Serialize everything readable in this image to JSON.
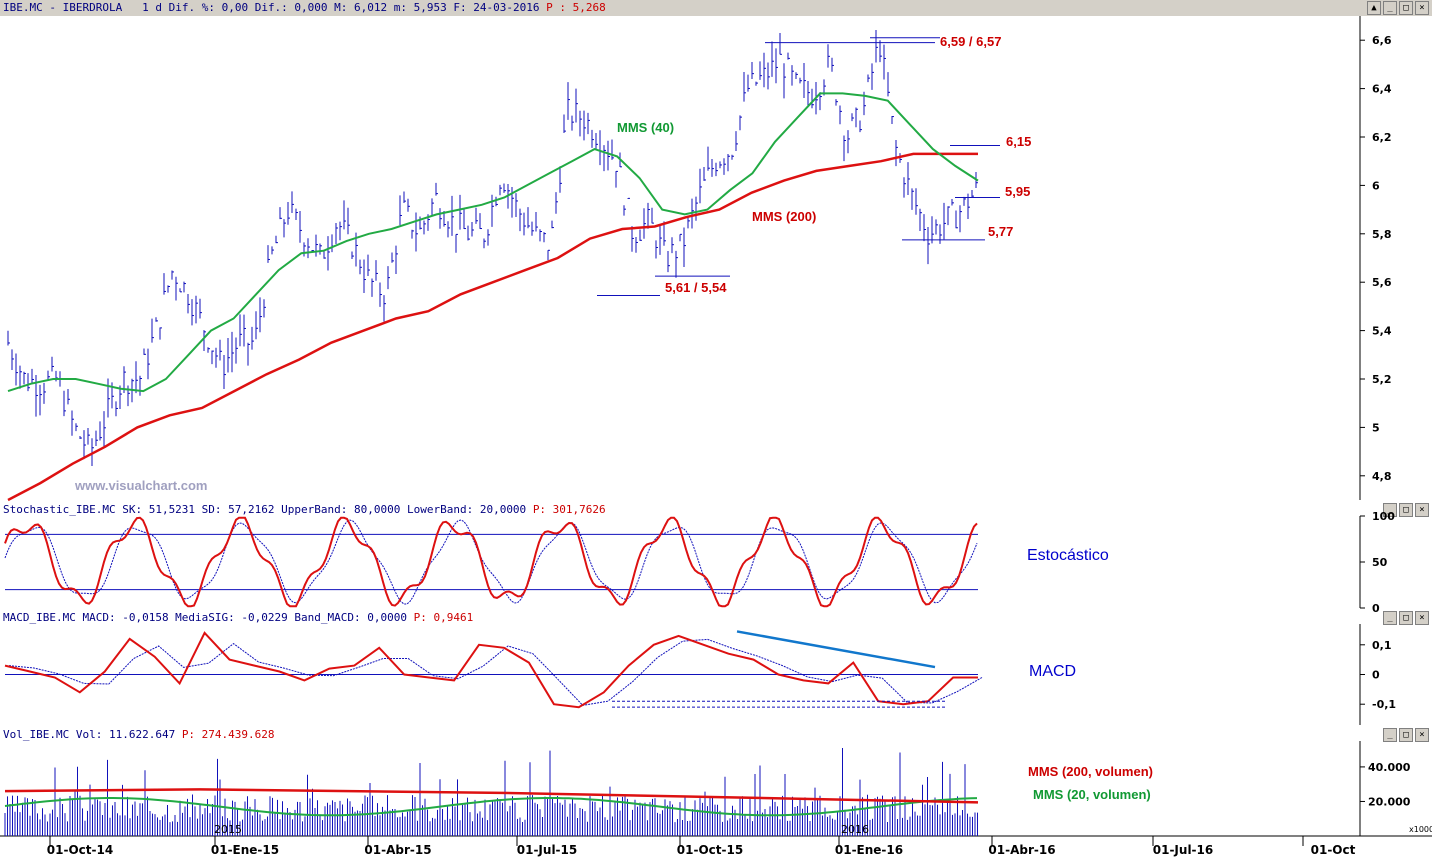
{
  "panels": {
    "price": {
      "title_symbol": "IBE.MC",
      "title_name": "IBERDROLA",
      "title_info": "1 d Dif. %: 0,00 Dif.: 0,000 M: 6,012 m: 5,953 F: 24-03-2016",
      "title_p": "P : 5,268"
    },
    "stoch": {
      "title": "Stochastic_IBE.MC SK: 51,5231 SD: 57,2162 UpperBand: 80,0000 LowerBand: 20,0000",
      "title_p": "P: 301,7626",
      "label": "Estocástico"
    },
    "macd": {
      "title": "MACD_IBE.MC MACD: -0,0158 MediaSIG: -0,0229 Band_MACD: 0,0000",
      "title_p": "P: 0,9461",
      "label": "MACD"
    },
    "vol": {
      "title": "Vol_IBE.MC Vol: 11.622.647",
      "title_p": "P: 274.439.628",
      "mms200": "MMS (200, volumen)",
      "mms20": "MMS (20, volumen)",
      "unit": "x1000"
    }
  },
  "watermark": "www.visualchart.com",
  "annotations": {
    "mms40": "MMS (40)",
    "mms200": "MMS (200)",
    "a659": "6,59 / 6,57",
    "a615": "6,15",
    "a595": "5,95",
    "a577": "5,77",
    "a561": "5,61 / 5,54"
  },
  "window_buttons": [
    "▲",
    "_",
    "□",
    "×"
  ],
  "chart_data": {
    "type": "line",
    "title": "IBE.MC - IBERDROLA",
    "x_ticks": [
      "01-Oct-14",
      "01-Ene-15",
      "01-Abr-15",
      "01-Jul-15",
      "01-Oct-15",
      "01-Ene-16",
      "01-Abr-16",
      "01-Jul-16",
      "01-Oct"
    ],
    "year_marks": [
      "2015",
      "2016"
    ],
    "price_y_ticks": [
      "6,6",
      "6,4",
      "6,2",
      "6",
      "5,8",
      "5,6",
      "5,4",
      "5,2",
      "5",
      "4,8"
    ],
    "stoch_y_ticks": [
      "100",
      "50",
      "0"
    ],
    "macd_y_ticks": [
      "0,1",
      "0",
      "-0,1"
    ],
    "vol_y_ticks": [
      "40.000",
      "20.000"
    ],
    "price_ylim": [
      4.7,
      6.7
    ],
    "price_close": [
      5.35,
      5.2,
      5.18,
      5.2,
      5.0,
      4.9,
      5.05,
      5.2,
      5.2,
      5.4,
      5.65,
      5.55,
      5.4,
      5.25,
      5.35,
      5.35,
      5.7,
      5.9,
      5.8,
      5.7,
      5.85,
      5.75,
      5.6,
      5.55,
      5.9,
      5.8,
      5.95,
      5.85,
      5.8,
      5.8,
      6.05,
      5.9,
      5.8,
      5.75,
      6.3,
      6.28,
      6.2,
      6.1,
      5.8,
      5.85,
      5.7,
      5.75,
      5.95,
      6.1,
      6.15,
      6.4,
      6.45,
      6.52,
      6.4,
      6.38,
      6.5,
      6.2,
      6.3,
      6.6,
      6.15,
      5.95,
      5.8,
      5.85,
      5.9,
      5.99
    ],
    "mms40": [
      5.15,
      5.18,
      5.2,
      5.2,
      5.18,
      5.16,
      5.15,
      5.2,
      5.3,
      5.4,
      5.45,
      5.55,
      5.65,
      5.72,
      5.73,
      5.77,
      5.8,
      5.82,
      5.85,
      5.88,
      5.9,
      5.92,
      5.95,
      6.0,
      6.05,
      6.1,
      6.15,
      6.12,
      6.03,
      5.9,
      5.88,
      5.9,
      5.98,
      6.05,
      6.18,
      6.28,
      6.38,
      6.38,
      6.37,
      6.35,
      6.25,
      6.15,
      6.08,
      6.02
    ],
    "mms200": [
      4.7,
      4.77,
      4.85,
      4.92,
      5.0,
      5.05,
      5.08,
      5.15,
      5.22,
      5.28,
      5.35,
      5.4,
      5.45,
      5.48,
      5.55,
      5.6,
      5.65,
      5.7,
      5.78,
      5.82,
      5.83,
      5.87,
      5.9,
      5.97,
      6.02,
      6.06,
      6.08,
      6.1,
      6.13,
      6.13,
      6.13
    ],
    "stoch_band": [
      20,
      80
    ],
    "macd_band": 0,
    "vol_ylim": [
      0,
      55000
    ]
  }
}
